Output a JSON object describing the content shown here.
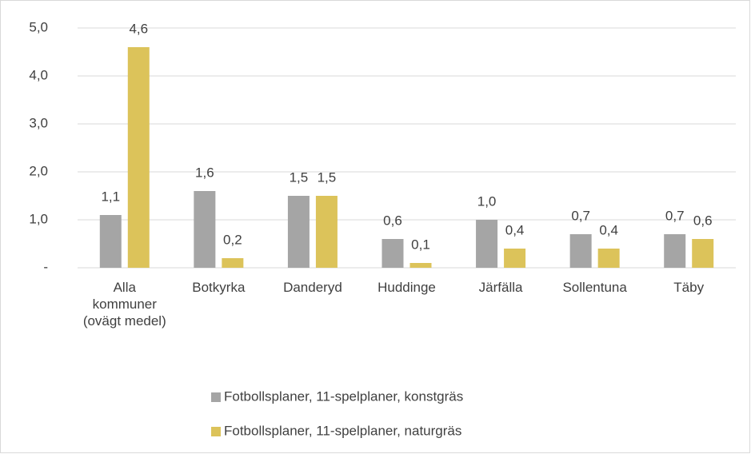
{
  "chart_data": {
    "type": "bar",
    "categories": [
      "Alla kommuner (ovägt medel)",
      "Botkyrka",
      "Danderyd",
      "Huddinge",
      "Järfälla",
      "Sollentuna",
      "Täby"
    ],
    "series": [
      {
        "name": "Fotbollsplaner, 11-spelplaner, konstgräs",
        "color": "#a5a5a5",
        "values": [
          1.1,
          1.6,
          1.5,
          0.6,
          1.0,
          0.7,
          0.7
        ],
        "value_labels": [
          "1,1",
          "1,6",
          "1,5",
          "0,6",
          "1,0",
          "0,7",
          "0,7"
        ]
      },
      {
        "name": "Fotbollsplaner, 11-spelplaner, naturgräs",
        "color": "#dcc35a",
        "values": [
          4.6,
          0.2,
          1.5,
          0.1,
          0.4,
          0.4,
          0.6
        ],
        "value_labels": [
          "4,6",
          "0,2",
          "1,5",
          "0,1",
          "0,4",
          "0,4",
          "0,6"
        ]
      }
    ],
    "ylim": [
      0,
      5
    ],
    "yticks": [
      {
        "value": 0,
        "label": "-"
      },
      {
        "value": 1,
        "label": "1,0"
      },
      {
        "value": 2,
        "label": "2,0"
      },
      {
        "value": 3,
        "label": "3,0"
      },
      {
        "value": 4,
        "label": "4,0"
      },
      {
        "value": 5,
        "label": "5,0"
      }
    ],
    "grid": true,
    "legend": "bottom"
  }
}
